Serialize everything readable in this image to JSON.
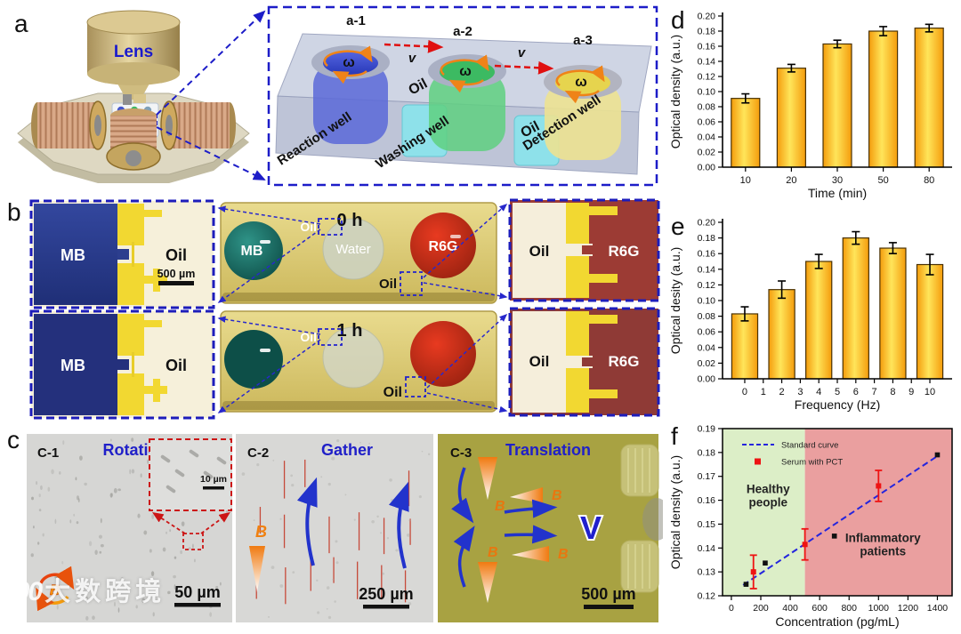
{
  "panels": {
    "a": {
      "label": "a",
      "lens": "Lens",
      "inset": {
        "step_labels": [
          "a-1",
          "a-2",
          "a-3"
        ],
        "omega": "ω",
        "velocity": "v",
        "oil_labels": [
          "Oil",
          "Oil"
        ],
        "well_labels": [
          "Reaction well",
          "Washing well",
          "Detection well"
        ]
      }
    },
    "b": {
      "label": "b",
      "time_top": "0 h",
      "time_bottom": "1 h",
      "mb": "MB",
      "water": "Water",
      "r6g": "R6G",
      "oil": "Oil",
      "scalebar": "500 µm"
    },
    "c": {
      "label": "c",
      "c1": {
        "tag": "C-1",
        "title": "Rotation",
        "b": "B",
        "inset_scale": "10 µm",
        "scale": "50 µm"
      },
      "c2": {
        "tag": "C-2",
        "title": "Gather",
        "b": "B",
        "scale": "250 µm"
      },
      "c3": {
        "tag": "C-3",
        "title": "Translation",
        "b": "B",
        "v": "V",
        "scale": "500 µm"
      }
    },
    "d": {
      "label": "d"
    },
    "e": {
      "label": "e"
    },
    "f": {
      "label": "f"
    }
  },
  "watermark": {
    "logo": "100",
    "text": "大数跨境"
  },
  "chart_data": [
    {
      "id": "chart-d",
      "type": "bar",
      "categories": [
        "10",
        "20",
        "30",
        "50",
        "80"
      ],
      "values": [
        0.091,
        0.131,
        0.163,
        0.18,
        0.184
      ],
      "errors": [
        0.006,
        0.005,
        0.005,
        0.006,
        0.005
      ],
      "title": "",
      "xlabel": "Time (min)",
      "ylabel": "Optical density (a.u.)",
      "ylim": [
        0,
        0.2
      ],
      "ytick_step": 0.02,
      "bar_fill": [
        "#F49C0C",
        "#FFE55A",
        "#F49C0C"
      ],
      "bar_stroke": "#4a3205"
    },
    {
      "id": "chart-e",
      "type": "bar",
      "x": [
        0,
        2,
        4,
        6,
        8,
        10
      ],
      "values": [
        0.083,
        0.114,
        0.15,
        0.18,
        0.167,
        0.146
      ],
      "errors": [
        0.009,
        0.011,
        0.009,
        0.008,
        0.007,
        0.013
      ],
      "xticks": [
        0,
        1,
        2,
        3,
        4,
        5,
        6,
        7,
        8,
        9,
        10
      ],
      "xlim": [
        -1.2,
        11.2
      ],
      "bar_width_units": 1.4,
      "title": "",
      "xlabel": "Frequency (Hz)",
      "ylabel": "Optical desity (a.u.)",
      "ylim": [
        0,
        0.2
      ],
      "ytick_step": 0.02,
      "bar_fill": [
        "#F49C0C",
        "#FFE55A",
        "#F49C0C"
      ],
      "bar_stroke": "#4a3205"
    },
    {
      "id": "chart-f",
      "type": "scatter",
      "title": "",
      "xlabel": "Concentration (pg/mL)",
      "ylabel": "Optical density (a.u.)",
      "xlim": [
        -60,
        1500
      ],
      "ylim": [
        0.12,
        0.19
      ],
      "xticks": [
        0,
        200,
        400,
        600,
        800,
        1000,
        1200,
        1400
      ],
      "ytick_step": 0.01,
      "regions": [
        {
          "label_lines": [
            "Healthy",
            "people"
          ],
          "x0": -60,
          "x1": 500,
          "color": "#dceec7",
          "label_x": 250,
          "label_y": 0.163
        },
        {
          "label_lines": [
            "Inflammatory",
            "patients"
          ],
          "x0": 500,
          "x1": 1500,
          "color": "#ea9f9f",
          "label_x": 1030,
          "label_y": 0.1425
        }
      ],
      "line": {
        "name": "Standard curve",
        "color": "#2525dd",
        "x": [
          80,
          1400
        ],
        "y": [
          0.1245,
          0.1785
        ]
      },
      "series": [
        {
          "name": "Standard curve points",
          "marker": "square",
          "color": "#111111",
          "points": [
            [
              100,
              0.1248
            ],
            [
              230,
              0.1337
            ],
            [
              700,
              0.145
            ],
            [
              1400,
              0.179
            ]
          ]
        },
        {
          "name": "Serum with PCT",
          "marker": "square",
          "color": "#ee1313",
          "points": [
            [
              150,
              0.13
            ],
            [
              500,
              0.1415
            ],
            [
              1000,
              0.166
            ]
          ],
          "errors": [
            0.007,
            0.0065,
            0.0065
          ]
        }
      ],
      "legend": [
        {
          "label": "Standard curve",
          "type": "dashed-line",
          "color": "#2525dd"
        },
        {
          "label": "Serum with PCT",
          "type": "square",
          "color": "#ee1313"
        }
      ],
      "legend_position": "top-left",
      "grid": false
    }
  ]
}
